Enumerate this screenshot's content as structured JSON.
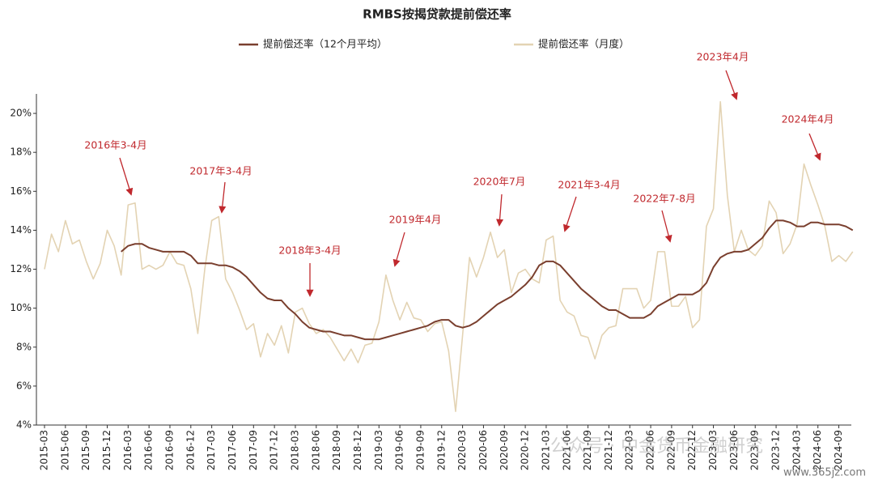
{
  "chart_data": {
    "type": "line",
    "title": "RMBS按揭贷款提前偿还率",
    "categories": [
      "2015-03",
      null,
      null,
      "2015-06",
      null,
      null,
      "2015-09",
      null,
      null,
      "2015-12",
      null,
      null,
      "2016-03",
      null,
      null,
      "2016-06",
      null,
      null,
      "2016-09",
      null,
      null,
      "2016-12",
      null,
      null,
      "2017-03",
      null,
      null,
      "2017-06",
      null,
      null,
      "2017-09",
      null,
      null,
      "2017-12",
      null,
      null,
      "2018-03",
      null,
      null,
      "2018-06",
      null,
      null,
      "2018-09",
      null,
      null,
      "2018-12",
      null,
      null,
      "2019-03",
      null,
      null,
      "2019-06",
      null,
      null,
      "2019-09",
      null,
      null,
      "2019-12",
      null,
      null,
      "2020-03",
      null,
      null,
      "2020-06",
      null,
      null,
      "2020-09",
      null,
      null,
      "2020-12",
      null,
      null,
      "2021-03",
      null,
      null,
      "2021-06",
      null,
      null,
      "2021-09",
      null,
      null,
      "2021-12",
      null,
      null,
      "2022-03",
      null,
      null,
      "2022-06",
      null,
      null,
      "2022-09",
      null,
      null,
      "2022-12",
      null,
      null,
      "2023-03",
      null,
      null,
      "2023-06",
      null,
      null,
      "2023-09",
      null,
      null,
      "2023-12",
      null,
      null,
      "2024-03",
      null,
      null,
      "2024-06",
      null,
      null,
      "2024-09",
      null,
      null
    ],
    "series": [
      {
        "name": "提前偿还率（12个月平均）",
        "color": "#7a3f2e",
        "width": 2,
        "values": [
          null,
          null,
          null,
          null,
          null,
          null,
          null,
          null,
          null,
          null,
          null,
          12.9,
          13.2,
          13.3,
          13.3,
          13.1,
          13.0,
          12.9,
          12.9,
          12.9,
          12.9,
          12.7,
          12.3,
          12.3,
          12.3,
          12.2,
          12.2,
          12.1,
          11.9,
          11.6,
          11.2,
          10.8,
          10.5,
          10.4,
          10.4,
          10.0,
          9.7,
          9.3,
          9.0,
          8.9,
          8.8,
          8.8,
          8.7,
          8.6,
          8.6,
          8.5,
          8.4,
          8.4,
          8.4,
          8.5,
          8.6,
          8.7,
          8.8,
          8.9,
          9.0,
          9.1,
          9.3,
          9.4,
          9.4,
          9.1,
          9.0,
          9.1,
          9.3,
          9.6,
          9.9,
          10.2,
          10.4,
          10.6,
          10.9,
          11.2,
          11.6,
          12.2,
          12.4,
          12.4,
          12.2,
          11.8,
          11.4,
          11.0,
          10.7,
          10.4,
          10.1,
          9.9,
          9.9,
          9.7,
          9.5,
          9.5,
          9.5,
          9.7,
          10.1,
          10.3,
          10.5,
          10.7,
          10.7,
          10.7,
          10.9,
          11.3,
          12.1,
          12.6,
          12.8,
          12.9,
          12.9,
          13.0,
          13.3,
          13.6,
          14.1,
          14.5,
          14.5,
          14.4,
          14.2,
          14.2,
          14.4,
          14.4,
          14.3,
          14.3,
          14.3,
          14.2,
          14.0
        ]
      },
      {
        "name": "提前偿还率（月度）",
        "color": "#e3d3b3",
        "width": 1.6,
        "values": [
          12.0,
          13.8,
          12.9,
          14.5,
          13.3,
          13.5,
          12.4,
          11.5,
          12.3,
          14.0,
          13.2,
          11.7,
          15.3,
          15.4,
          12.0,
          12.2,
          12.0,
          12.2,
          12.9,
          12.3,
          12.2,
          11.0,
          8.7,
          12.0,
          14.5,
          14.7,
          11.5,
          10.8,
          9.9,
          8.9,
          9.2,
          7.5,
          8.7,
          8.1,
          9.1,
          7.7,
          9.8,
          10.0,
          9.2,
          8.7,
          8.9,
          8.5,
          7.9,
          7.3,
          7.9,
          7.2,
          8.1,
          8.2,
          9.3,
          11.7,
          10.4,
          9.4,
          10.3,
          9.5,
          9.4,
          8.8,
          9.2,
          9.3,
          7.8,
          4.7,
          8.6,
          12.6,
          11.6,
          12.6,
          13.9,
          12.6,
          13.0,
          10.8,
          11.8,
          12.0,
          11.5,
          11.3,
          13.5,
          13.7,
          10.4,
          9.8,
          9.6,
          8.6,
          8.5,
          7.4,
          8.6,
          9.0,
          9.1,
          11.0,
          11.0,
          11.0,
          10.0,
          10.4,
          12.9,
          12.9,
          10.1,
          10.1,
          10.6,
          9.0,
          9.4,
          14.2,
          15.1,
          20.6,
          15.8,
          12.9,
          14.0,
          13.0,
          12.7,
          13.2,
          15.5,
          14.9,
          12.8,
          13.3,
          14.3,
          17.4,
          16.3,
          15.3,
          14.2,
          12.4,
          12.7,
          12.4,
          12.9
        ]
      }
    ],
    "ylim": [
      4,
      21
    ],
    "yticks": [
      {
        "value": 4,
        "label": "4%"
      },
      {
        "value": 6,
        "label": "6%"
      },
      {
        "value": 8,
        "label": "8%"
      },
      {
        "value": 10,
        "label": "10%"
      },
      {
        "value": 12,
        "label": "12%"
      },
      {
        "value": 14,
        "label": "14%"
      },
      {
        "value": 16,
        "label": "16%"
      },
      {
        "value": 18,
        "label": "18%"
      },
      {
        "value": 20,
        "label": "20%"
      }
    ],
    "annotations": [
      "2016年3-4月",
      "2017年3-4月",
      "2018年3-4月",
      "2019年4月",
      "2020年7月",
      "2021年3-4月",
      "2022年7-8月",
      "2023年4月",
      "2024年4月"
    ],
    "annotation_color": "#c0282d",
    "legend": "top",
    "watermark": [
      "公众号 · 中金货币金融研究",
      "www.365jz.com"
    ]
  }
}
